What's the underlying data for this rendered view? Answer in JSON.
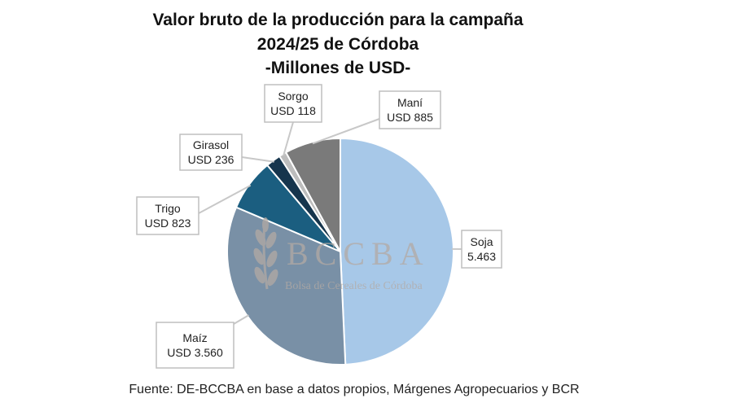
{
  "chart_data": {
    "type": "pie",
    "title_lines": [
      "Valor bruto de la producción para la campaña",
      "2024/25 de Córdoba",
      "-Millones de USD-"
    ],
    "slices": [
      {
        "label": "Soja",
        "value": 5463,
        "display": "5.463",
        "color": "#a7c8e8"
      },
      {
        "label": "Maíz",
        "value": 3560,
        "display": "USD 3.560",
        "color": "#7990a6"
      },
      {
        "label": "Trigo",
        "value": 823,
        "display": "USD 823",
        "color": "#1b5e80"
      },
      {
        "label": "Girasol",
        "value": 236,
        "display": "USD 236",
        "color": "#16354d"
      },
      {
        "label": "Sorgo",
        "value": 118,
        "display": "USD 118",
        "color": "#bdbdbd"
      },
      {
        "label": "Maní",
        "value": 885,
        "display": "USD 885",
        "color": "#7a7a7a"
      }
    ]
  },
  "watermark": {
    "logo": "BCCBA",
    "subtitle": "Bolsa de Cereales de Córdoba"
  },
  "source": "Fuente: DE-BCCBA en base a datos propios, Márgenes Agropecuarios y BCR"
}
